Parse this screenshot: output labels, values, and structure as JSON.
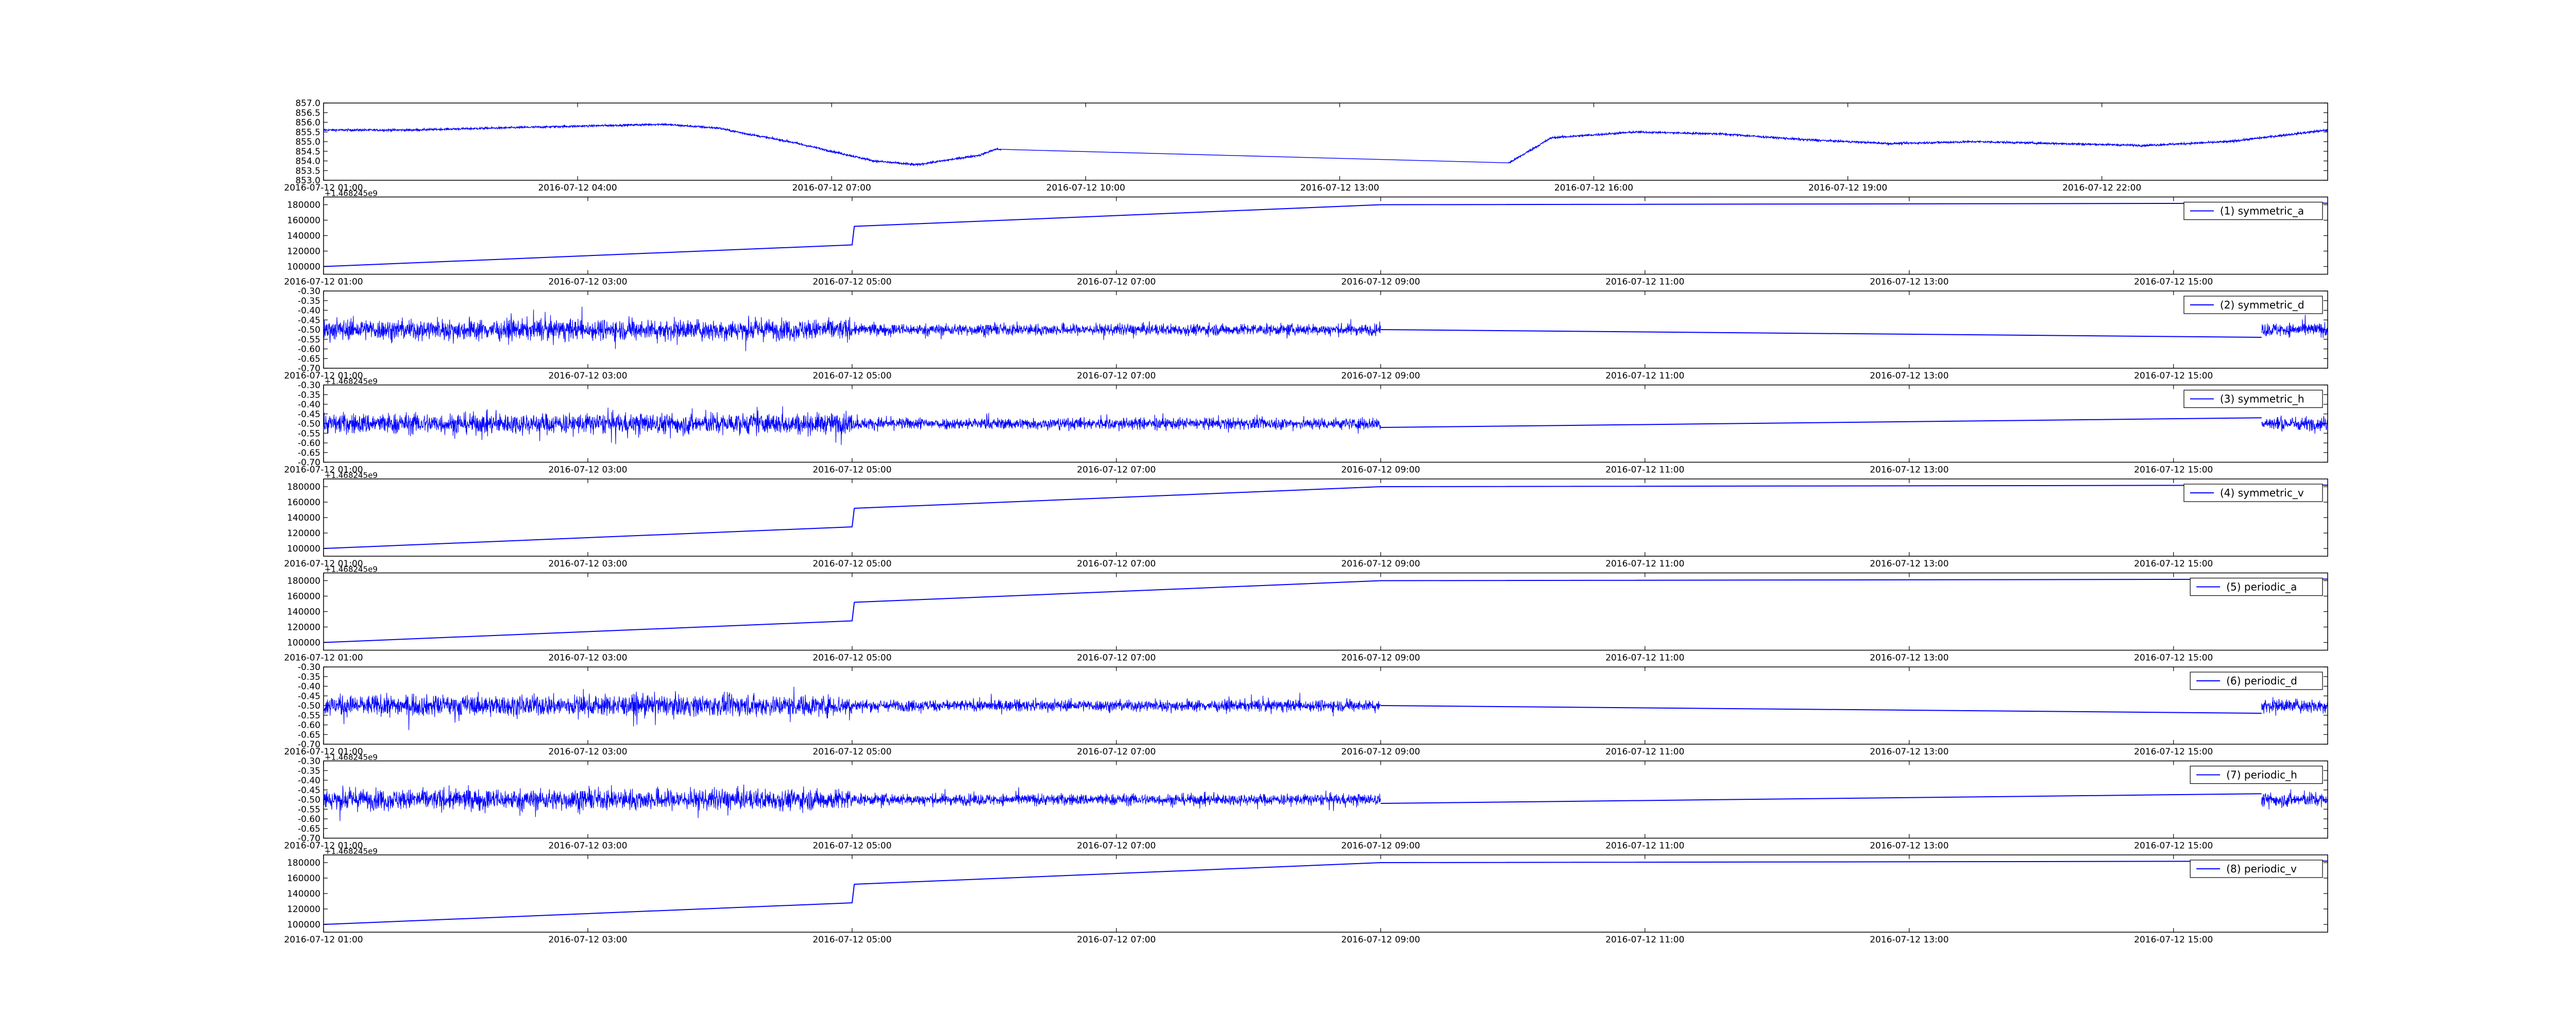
{
  "chart_data": [
    {
      "type": "line",
      "x_unit": "datetime",
      "xlim": [
        "2016-07-12 01:00",
        "2016-07-13 00:40"
      ],
      "x_ticks": [
        "2016-07-12 01:00",
        "2016-07-12 04:00",
        "2016-07-12 07:00",
        "2016-07-12 10:00",
        "2016-07-12 13:00",
        "2016-07-12 16:00",
        "2016-07-12 19:00",
        "2016-07-12 22:00"
      ],
      "ylim": [
        853.0,
        857.0
      ],
      "y_ticks": [
        "853.0",
        "853.5",
        "854.0",
        "854.5",
        "855.0",
        "855.5",
        "856.0",
        "856.5",
        "857.0"
      ],
      "series": [
        {
          "color": "#0000ff",
          "noise": 0.2,
          "x": [
            "2016-07-12 01:00",
            "2016-07-12 02:00",
            "2016-07-12 03:00",
            "2016-07-12 04:00",
            "2016-07-12 05:00",
            "2016-07-12 05:40",
            "2016-07-12 06:00",
            "2016-07-12 06:30",
            "2016-07-12 07:00",
            "2016-07-12 07:30",
            "2016-07-12 08:00",
            "2016-07-12 08:45",
            "2016-07-12 08:56",
            "2016-07-12 09:00",
            "2016-07-12 15:00",
            "2016-07-12 15:30",
            "2016-07-12 16:30",
            "2016-07-12 17:30",
            "2016-07-12 18:30",
            "2016-07-12 19:30",
            "2016-07-12 20:30",
            "2016-07-12 21:30",
            "2016-07-12 22:30",
            "2016-07-12 23:30",
            "2016-07-13 00:40"
          ],
          "y": [
            855.6,
            855.6,
            855.7,
            855.8,
            855.9,
            855.7,
            855.4,
            855.0,
            854.5,
            854.0,
            853.8,
            854.3,
            854.6,
            854.6,
            853.9,
            855.2,
            855.5,
            855.4,
            855.1,
            854.9,
            855.0,
            854.9,
            854.8,
            855.0,
            855.6
          ]
        }
      ]
    },
    {
      "type": "line",
      "offset_label": "+1.468245e9",
      "x_unit": "datetime",
      "xlim": [
        "2016-07-12 01:00",
        "2016-07-12 16:10"
      ],
      "x_ticks": [
        "2016-07-12 01:00",
        "2016-07-12 03:00",
        "2016-07-12 05:00",
        "2016-07-12 07:00",
        "2016-07-12 09:00",
        "2016-07-12 11:00",
        "2016-07-12 13:00",
        "2016-07-12 15:00"
      ],
      "ylim": [
        90000,
        190000
      ],
      "y_ticks": [
        "100000",
        "120000",
        "140000",
        "160000",
        "180000"
      ],
      "series": [
        {
          "name": "(1) symmetric_a",
          "color": "#0000ff",
          "x": [
            "2016-07-12 01:00",
            "2016-07-12 05:00",
            "2016-07-12 05:01",
            "2016-07-12 09:00",
            "2016-07-12 16:10"
          ],
          "y": [
            100000,
            128000,
            152000,
            180000,
            182000
          ]
        }
      ]
    },
    {
      "type": "line",
      "x_unit": "datetime",
      "xlim": [
        "2016-07-12 01:00",
        "2016-07-12 16:10"
      ],
      "x_ticks": [
        "2016-07-12 01:00",
        "2016-07-12 03:00",
        "2016-07-12 05:00",
        "2016-07-12 07:00",
        "2016-07-12 09:00",
        "2016-07-12 11:00",
        "2016-07-12 13:00",
        "2016-07-12 15:00"
      ],
      "ylim": [
        -0.7,
        -0.3
      ],
      "y_ticks": [
        "-0.70",
        "-0.65",
        "-0.60",
        "-0.55",
        "-0.50",
        "-0.45",
        "-0.40",
        "-0.35",
        "-0.30"
      ],
      "series": [
        {
          "name": "(2) symmetric_d",
          "color": "#0000ff",
          "noise_segments": [
            {
              "x": [
                "2016-07-12 01:00",
                "2016-07-12 05:00"
              ],
              "mean": -0.5,
              "amplitude": 0.09
            },
            {
              "x": [
                "2016-07-12 05:00",
                "2016-07-12 09:00"
              ],
              "mean": -0.5,
              "amplitude": 0.05
            },
            {
              "x": [
                "2016-07-12 15:40",
                "2016-07-12 16:10"
              ],
              "mean": -0.5,
              "amplitude": 0.06
            }
          ],
          "x": [
            "2016-07-12 09:00",
            "2016-07-12 15:40"
          ],
          "y": [
            -0.5,
            -0.54
          ]
        }
      ]
    },
    {
      "type": "line",
      "offset_label": "+1.468245e9",
      "x_unit": "datetime",
      "xlim": [
        "2016-07-12 01:00",
        "2016-07-12 16:10"
      ],
      "x_ticks": [
        "2016-07-12 01:00",
        "2016-07-12 03:00",
        "2016-07-12 05:00",
        "2016-07-12 07:00",
        "2016-07-12 09:00",
        "2016-07-12 11:00",
        "2016-07-12 13:00",
        "2016-07-12 15:00"
      ],
      "ylim": [
        -0.7,
        -0.3
      ],
      "y_ticks": [
        "-0.70",
        "-0.65",
        "-0.60",
        "-0.55",
        "-0.50",
        "-0.45",
        "-0.40",
        "-0.35",
        "-0.30"
      ],
      "series": [
        {
          "name": "(3) symmetric_h",
          "color": "#0000ff",
          "noise_segments": [
            {
              "x": [
                "2016-07-12 01:00",
                "2016-07-12 05:00"
              ],
              "mean": -0.5,
              "amplitude": 0.09
            },
            {
              "x": [
                "2016-07-12 05:00",
                "2016-07-12 09:00"
              ],
              "mean": -0.5,
              "amplitude": 0.05
            },
            {
              "x": [
                "2016-07-12 15:40",
                "2016-07-12 16:10"
              ],
              "mean": -0.5,
              "amplitude": 0.06
            }
          ],
          "x": [
            "2016-07-12 09:00",
            "2016-07-12 15:40"
          ],
          "y": [
            -0.52,
            -0.47
          ]
        }
      ]
    },
    {
      "type": "line",
      "offset_label": "+1.468245e9",
      "x_unit": "datetime",
      "xlim": [
        "2016-07-12 01:00",
        "2016-07-12 16:10"
      ],
      "x_ticks": [
        "2016-07-12 01:00",
        "2016-07-12 03:00",
        "2016-07-12 05:00",
        "2016-07-12 07:00",
        "2016-07-12 09:00",
        "2016-07-12 11:00",
        "2016-07-12 13:00",
        "2016-07-12 15:00"
      ],
      "ylim": [
        90000,
        190000
      ],
      "y_ticks": [
        "100000",
        "120000",
        "140000",
        "160000",
        "180000"
      ],
      "series": [
        {
          "name": "(4) symmetric_v",
          "color": "#0000ff",
          "x": [
            "2016-07-12 01:00",
            "2016-07-12 05:00",
            "2016-07-12 05:01",
            "2016-07-12 09:00",
            "2016-07-12 16:10"
          ],
          "y": [
            100000,
            128000,
            152000,
            180000,
            182000
          ]
        }
      ]
    },
    {
      "type": "line",
      "offset_label": "+1.468245e9",
      "x_unit": "datetime",
      "xlim": [
        "2016-07-12 01:00",
        "2016-07-12 16:10"
      ],
      "x_ticks": [
        "2016-07-12 01:00",
        "2016-07-12 03:00",
        "2016-07-12 05:00",
        "2016-07-12 07:00",
        "2016-07-12 09:00",
        "2016-07-12 11:00",
        "2016-07-12 13:00",
        "2016-07-12 15:00"
      ],
      "ylim": [
        90000,
        190000
      ],
      "y_ticks": [
        "100000",
        "120000",
        "140000",
        "160000",
        "180000"
      ],
      "series": [
        {
          "name": "(5) periodic_a",
          "color": "#0000ff",
          "x": [
            "2016-07-12 01:00",
            "2016-07-12 05:00",
            "2016-07-12 05:01",
            "2016-07-12 09:00",
            "2016-07-12 16:10"
          ],
          "y": [
            100000,
            128000,
            152000,
            180000,
            182000
          ]
        }
      ]
    },
    {
      "type": "line",
      "x_unit": "datetime",
      "xlim": [
        "2016-07-12 01:00",
        "2016-07-12 16:10"
      ],
      "x_ticks": [
        "2016-07-12 01:00",
        "2016-07-12 03:00",
        "2016-07-12 05:00",
        "2016-07-12 07:00",
        "2016-07-12 09:00",
        "2016-07-12 11:00",
        "2016-07-12 13:00",
        "2016-07-12 15:00"
      ],
      "ylim": [
        -0.7,
        -0.3
      ],
      "y_ticks": [
        "-0.70",
        "-0.65",
        "-0.60",
        "-0.55",
        "-0.50",
        "-0.45",
        "-0.40",
        "-0.35",
        "-0.30"
      ],
      "series": [
        {
          "name": "(6) periodic_d",
          "color": "#0000ff",
          "noise_segments": [
            {
              "x": [
                "2016-07-12 01:00",
                "2016-07-12 05:00"
              ],
              "mean": -0.5,
              "amplitude": 0.09
            },
            {
              "x": [
                "2016-07-12 05:00",
                "2016-07-12 09:00"
              ],
              "mean": -0.5,
              "amplitude": 0.05
            },
            {
              "x": [
                "2016-07-12 15:40",
                "2016-07-12 16:10"
              ],
              "mean": -0.5,
              "amplitude": 0.06
            }
          ],
          "x": [
            "2016-07-12 09:00",
            "2016-07-12 15:40"
          ],
          "y": [
            -0.5,
            -0.54
          ]
        }
      ]
    },
    {
      "type": "line",
      "offset_label": "+1.468245e9",
      "x_unit": "datetime",
      "xlim": [
        "2016-07-12 01:00",
        "2016-07-12 16:10"
      ],
      "x_ticks": [
        "2016-07-12 01:00",
        "2016-07-12 03:00",
        "2016-07-12 05:00",
        "2016-07-12 07:00",
        "2016-07-12 09:00",
        "2016-07-12 11:00",
        "2016-07-12 13:00",
        "2016-07-12 15:00"
      ],
      "ylim": [
        -0.7,
        -0.3
      ],
      "y_ticks": [
        "-0.70",
        "-0.65",
        "-0.60",
        "-0.55",
        "-0.50",
        "-0.45",
        "-0.40",
        "-0.35",
        "-0.30"
      ],
      "series": [
        {
          "name": "(7) periodic_h",
          "color": "#0000ff",
          "noise_segments": [
            {
              "x": [
                "2016-07-12 01:00",
                "2016-07-12 05:00"
              ],
              "mean": -0.5,
              "amplitude": 0.09
            },
            {
              "x": [
                "2016-07-12 05:00",
                "2016-07-12 09:00"
              ],
              "mean": -0.5,
              "amplitude": 0.05
            },
            {
              "x": [
                "2016-07-12 15:40",
                "2016-07-12 16:10"
              ],
              "mean": -0.5,
              "amplitude": 0.06
            }
          ],
          "x": [
            "2016-07-12 09:00",
            "2016-07-12 15:40"
          ],
          "y": [
            -0.52,
            -0.47
          ]
        }
      ]
    },
    {
      "type": "line",
      "offset_label": "+1.468245e9",
      "x_unit": "datetime",
      "xlim": [
        "2016-07-12 01:00",
        "2016-07-12 16:10"
      ],
      "x_ticks": [
        "2016-07-12 01:00",
        "2016-07-12 03:00",
        "2016-07-12 05:00",
        "2016-07-12 07:00",
        "2016-07-12 09:00",
        "2016-07-12 11:00",
        "2016-07-12 13:00",
        "2016-07-12 15:00"
      ],
      "ylim": [
        90000,
        190000
      ],
      "y_ticks": [
        "100000",
        "120000",
        "140000",
        "160000",
        "180000"
      ],
      "series": [
        {
          "name": "(8) periodic_v",
          "color": "#0000ff",
          "x": [
            "2016-07-12 01:00",
            "2016-07-12 05:00",
            "2016-07-12 05:01",
            "2016-07-12 09:00",
            "2016-07-12 16:10"
          ],
          "y": [
            100000,
            128000,
            152000,
            180000,
            182000
          ]
        }
      ]
    }
  ]
}
